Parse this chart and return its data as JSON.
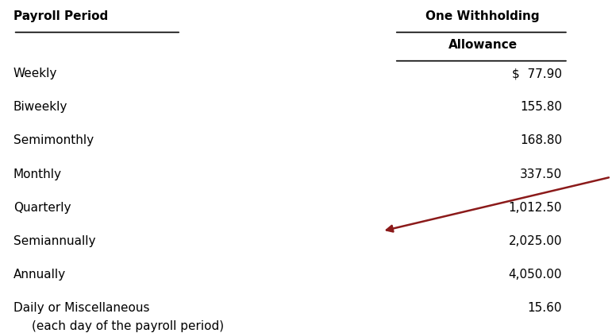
{
  "col1_header": "Payroll Period",
  "col2_header_line1": "One Withholding",
  "col2_header_line2": "Allowance",
  "rows": [
    {
      "period": "Weekly",
      "sub": "",
      "value": "$  77.90"
    },
    {
      "period": "Biweekly",
      "sub": "",
      "value": "155.80"
    },
    {
      "period": "Semimonthly",
      "sub": "",
      "value": "168.80"
    },
    {
      "period": "Monthly",
      "sub": "",
      "value": "337.50"
    },
    {
      "period": "Quarterly",
      "sub": "",
      "value": "1,012.50"
    },
    {
      "period": "Semiannually",
      "sub": "",
      "value": "2,025.00"
    },
    {
      "period": "Annually",
      "sub": "",
      "value": "4,050.00"
    },
    {
      "period": "Daily or Miscellaneous",
      "sub": "(each day of the payroll period)",
      "value": "15.60"
    }
  ],
  "arrow_color": "#8B1A1A",
  "bg_color": "#ffffff",
  "text_color": "#000000",
  "font_size": 11,
  "header_font_size": 11
}
